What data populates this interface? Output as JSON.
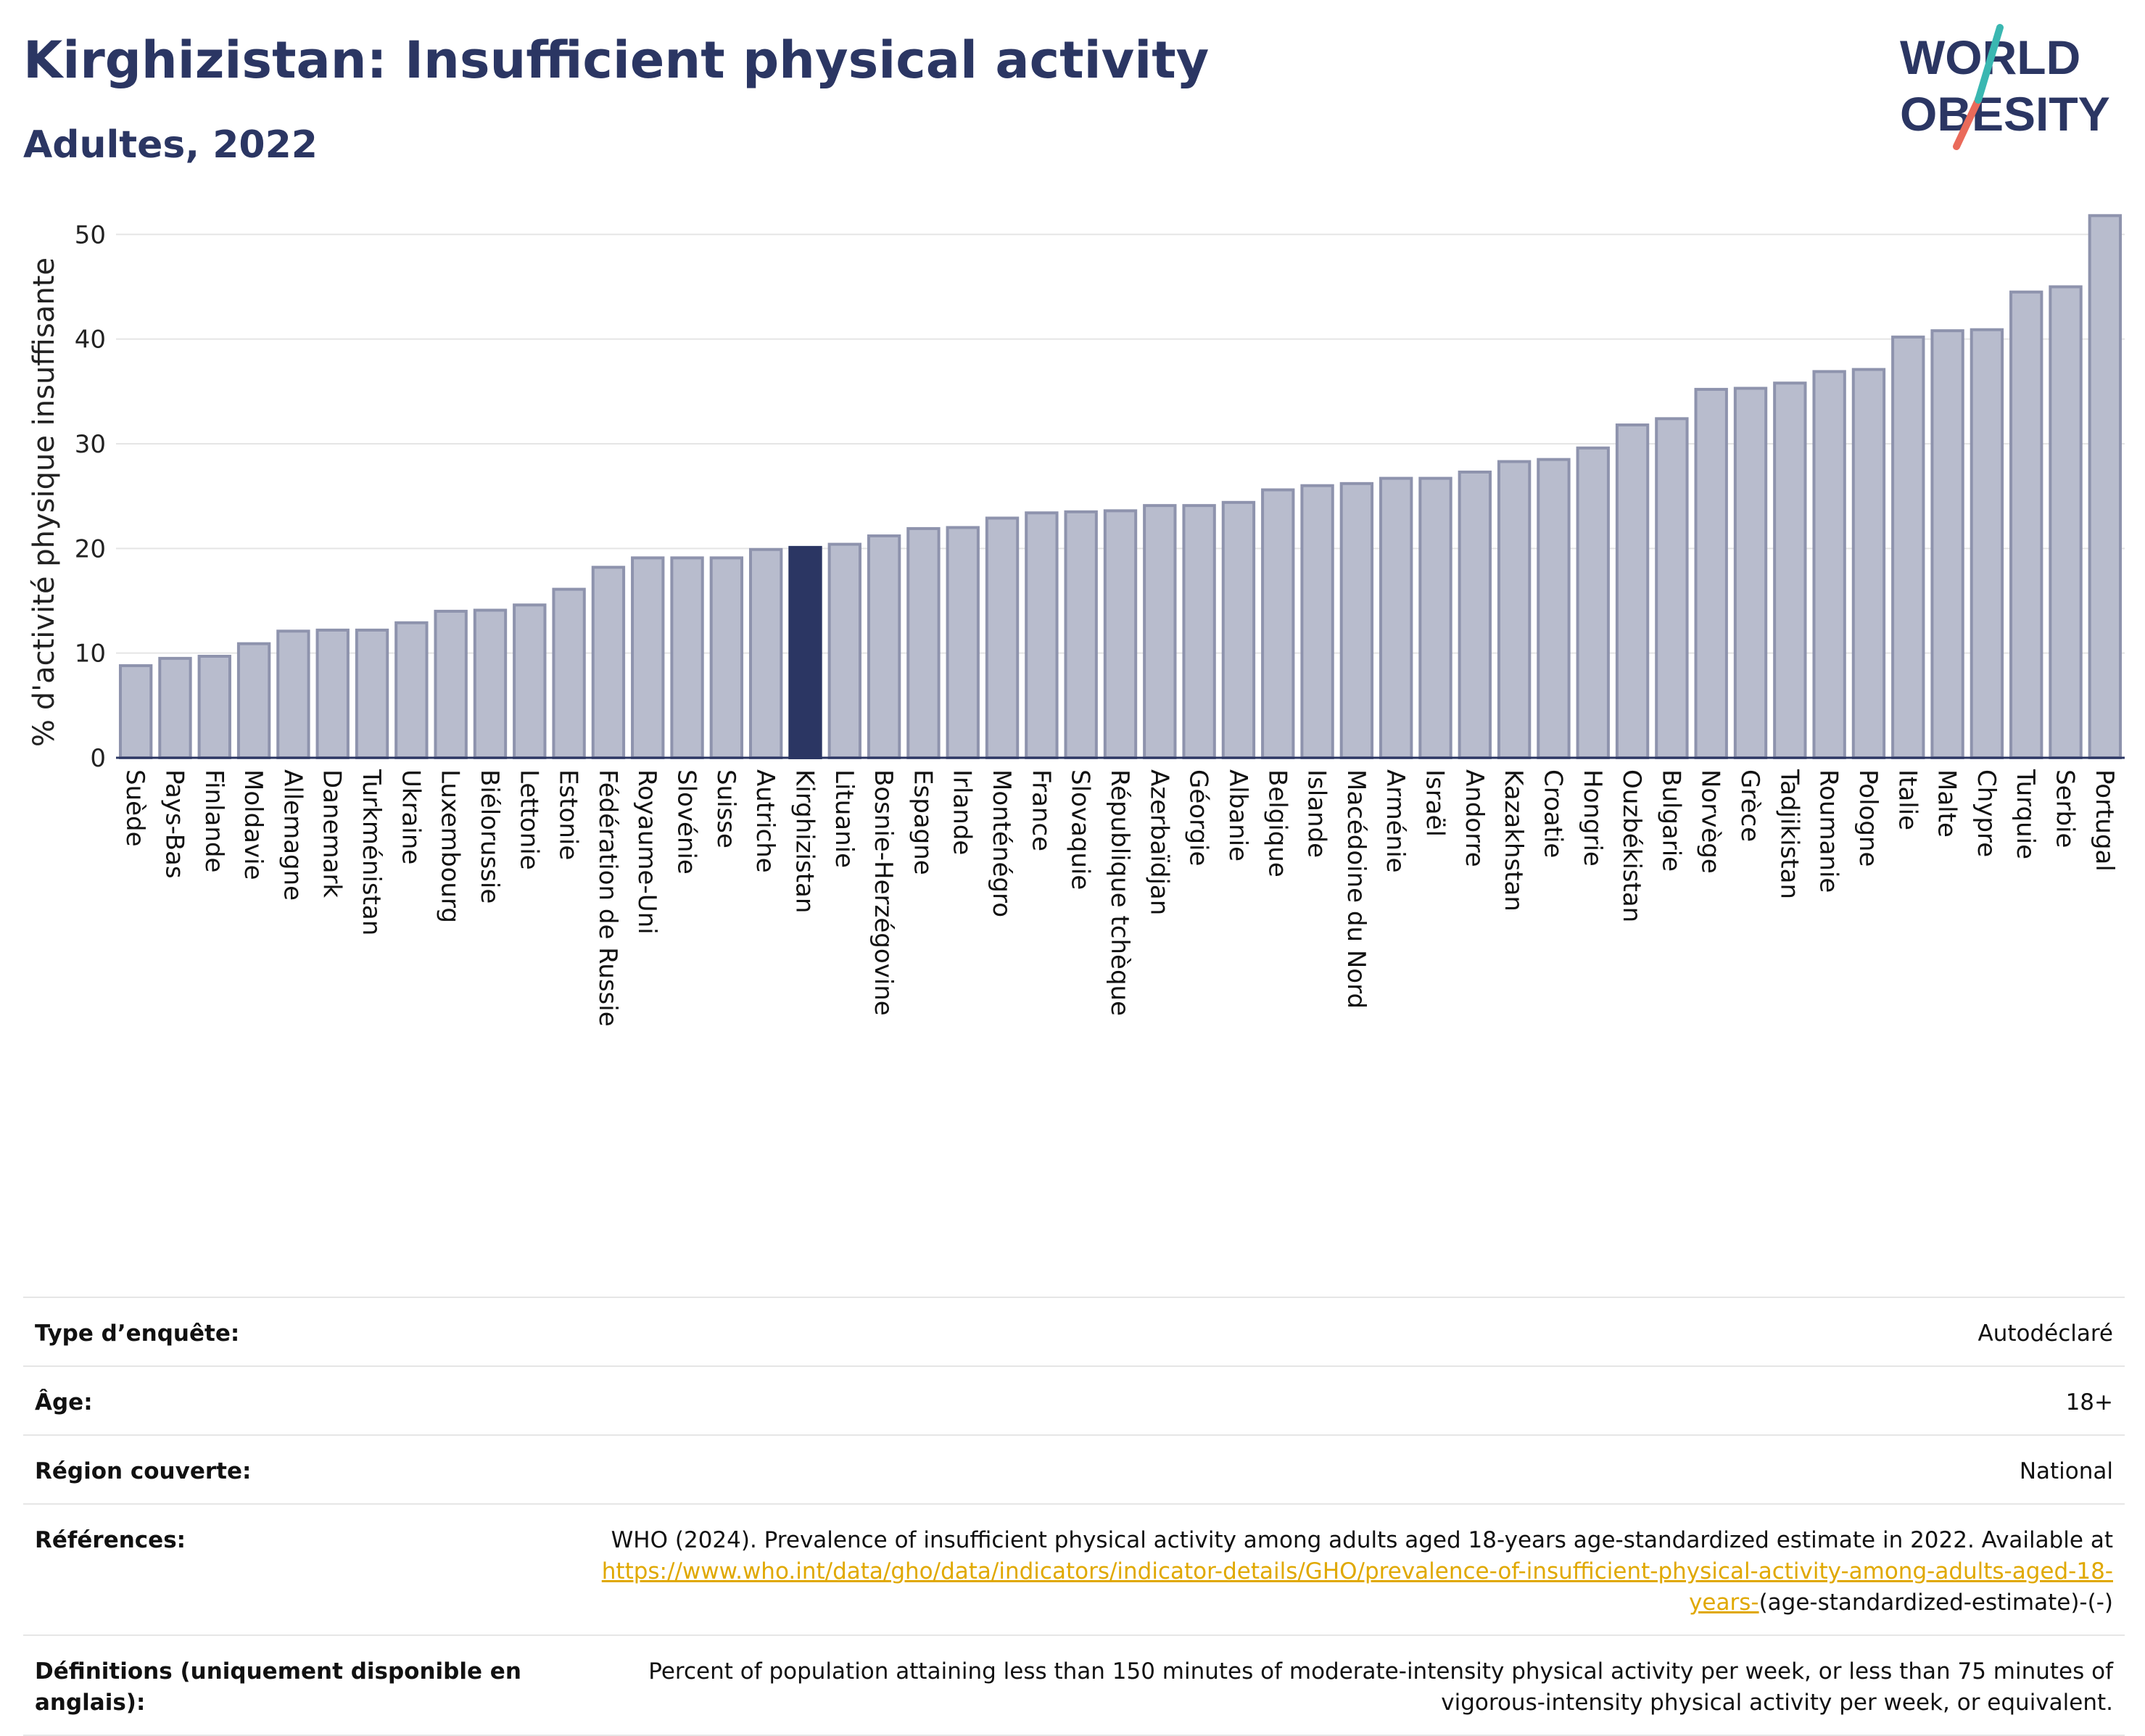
{
  "header": {
    "title": "Kirghizistan: Insufficient physical activity",
    "subtitle": "Adultes, 2022"
  },
  "logo": {
    "line1": "WORLD",
    "line2": "OBESITY"
  },
  "colors": {
    "bar_fill": "#b8bccd",
    "bar_stroke": "#8e93ad",
    "highlight": "#2b3663",
    "title": "#2b3663",
    "link": "#e0a800",
    "logo_teal": "#3ab7b1",
    "logo_coral": "#ea6a5a"
  },
  "chart_data": {
    "type": "bar",
    "ylabel": "% d'activité physique insuffisante",
    "ylim": [
      0,
      53
    ],
    "yticks": [
      0,
      10,
      20,
      30,
      40,
      50
    ],
    "grid": true,
    "highlight": "Kirghizistan",
    "categories": [
      "Suède",
      "Pays-Bas",
      "Finlande",
      "Moldavie",
      "Allemagne",
      "Danemark",
      "Turkménistan",
      "Ukraine",
      "Luxembourg",
      "Biélorussie",
      "Lettonie",
      "Estonie",
      "Fédération de Russie",
      "Royaume-Uni",
      "Slovénie",
      "Suisse",
      "Autriche",
      "Kirghizistan",
      "Lituanie",
      "Bosnie-Herzégovine",
      "Espagne",
      "Irlande",
      "Monténégro",
      "France",
      "Slovaquie",
      "République tchèque",
      "Azerbaïdjan",
      "Géorgie",
      "Albanie",
      "Belgique",
      "Islande",
      "Macédoine du Nord",
      "Arménie",
      "Israël",
      "Andorre",
      "Kazakhstan",
      "Croatie",
      "Hongrie",
      "Ouzbékistan",
      "Bulgarie",
      "Norvège",
      "Grèce",
      "Tadjikistan",
      "Roumanie",
      "Pologne",
      "Italie",
      "Malte",
      "Chypre",
      "Turquie",
      "Serbie",
      "Portugal"
    ],
    "values": [
      8.8,
      9.5,
      9.7,
      10.9,
      12.1,
      12.2,
      12.2,
      12.9,
      14.0,
      14.1,
      14.6,
      16.1,
      18.2,
      19.1,
      19.1,
      19.1,
      19.9,
      20.1,
      20.4,
      21.2,
      21.9,
      22.0,
      22.9,
      23.4,
      23.5,
      23.6,
      24.1,
      24.1,
      24.4,
      25.6,
      26.0,
      26.2,
      26.7,
      26.7,
      27.3,
      28.3,
      28.5,
      29.6,
      31.8,
      32.4,
      35.2,
      35.3,
      35.8,
      36.9,
      37.1,
      40.2,
      40.8,
      40.9,
      44.5,
      45.0,
      51.8
    ]
  },
  "meta": [
    {
      "label": "Type d’enquête:",
      "value": "Autodéclaré"
    },
    {
      "label": "Âge:",
      "value": "18+"
    },
    {
      "label": "Région couverte:",
      "value": "National"
    }
  ],
  "references": {
    "label": "Références:",
    "text": "WHO (2024). Prevalence of insufficient physical activity among adults aged 18-years age-standardized estimate in 2022. Available at",
    "link": "https://www.who.int/data/gho/data/indicators/indicator-details/GHO/prevalence-of-insufficient-physical-activity-among-adults-aged-18-years-",
    "suffix": "(age-standardized-estimate)-(-)"
  },
  "definitions": {
    "label": "Définitions (uniquement disponible en anglais):",
    "value": "Percent of population attaining less than 150 minutes of moderate-intensity physical activity per week, or less than 75 minutes of vigorous-intensity physical activity per week, or equivalent."
  }
}
